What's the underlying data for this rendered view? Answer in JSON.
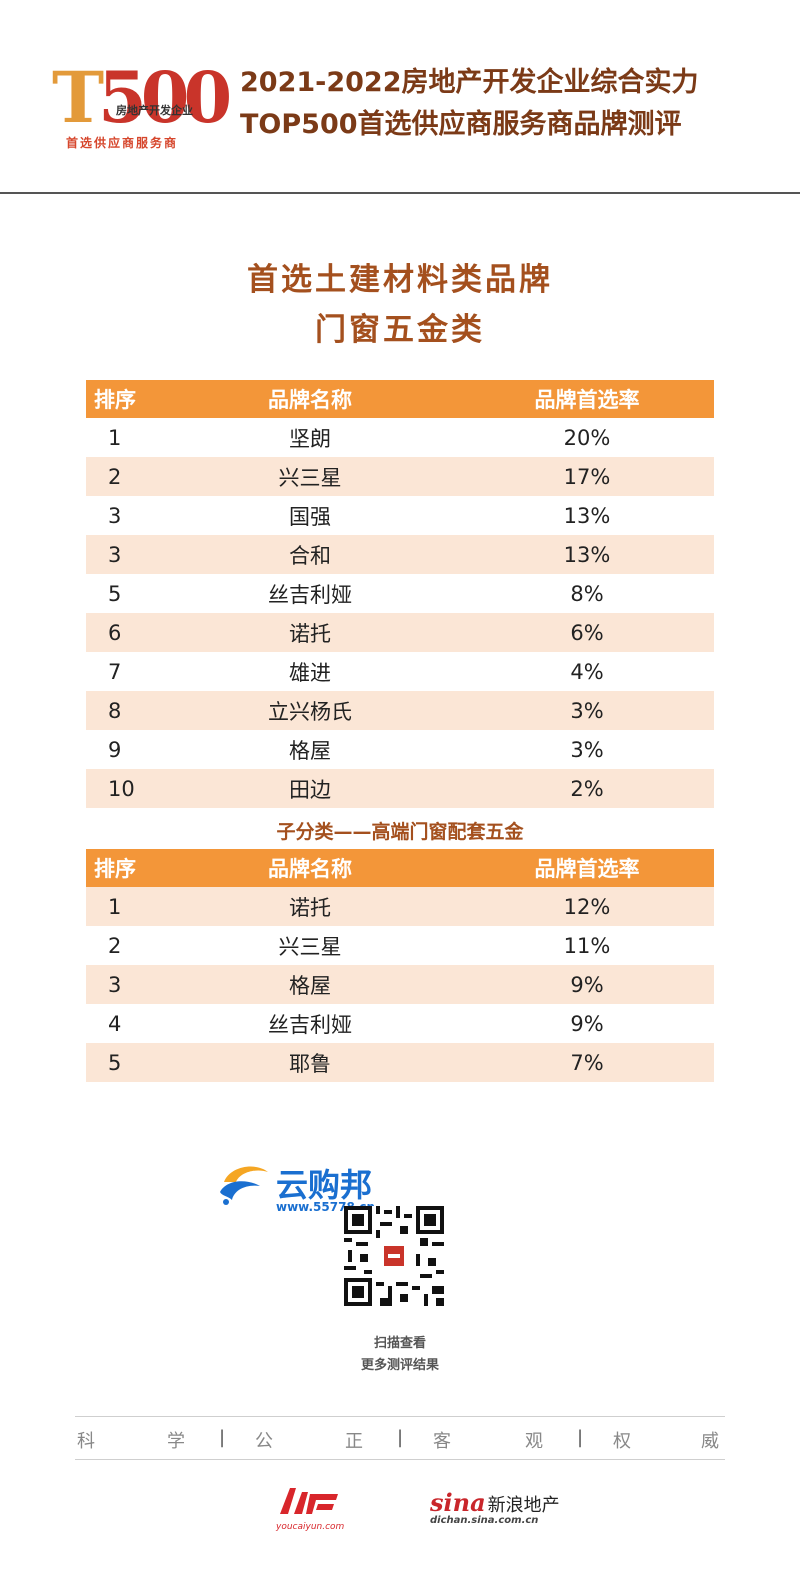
{
  "header": {
    "logo_sub": "首选供应商服务商",
    "logo_tag": "房地产开发企业",
    "title_line1": "2021-2022房地产开发企业综合实力",
    "title_line2": "TOP500首选供应商服务商品牌测评"
  },
  "category": {
    "title_line1": "首选土建材料类品牌",
    "title_line2": "门窗五金类"
  },
  "table_headers": {
    "rank": "排序",
    "brand": "品牌名称",
    "rate": "品牌首选率"
  },
  "main_table": [
    {
      "rank": "1",
      "brand": "坚朗",
      "rate": "20%"
    },
    {
      "rank": "2",
      "brand": "兴三星",
      "rate": "17%"
    },
    {
      "rank": "3",
      "brand": "国强",
      "rate": "13%"
    },
    {
      "rank": "3",
      "brand": "合和",
      "rate": "13%"
    },
    {
      "rank": "5",
      "brand": "丝吉利娅",
      "rate": "8%"
    },
    {
      "rank": "6",
      "brand": "诺托",
      "rate": "6%"
    },
    {
      "rank": "7",
      "brand": "雄进",
      "rate": "4%"
    },
    {
      "rank": "8",
      "brand": "立兴杨氏",
      "rate": "3%"
    },
    {
      "rank": "9",
      "brand": "格屋",
      "rate": "3%"
    },
    {
      "rank": "10",
      "brand": "田边",
      "rate": "2%"
    }
  ],
  "subcategory_title": "子分类——高端门窗配套五金",
  "sub_table": [
    {
      "rank": "1",
      "brand": "诺托",
      "rate": "12%"
    },
    {
      "rank": "2",
      "brand": "兴三星",
      "rate": "11%"
    },
    {
      "rank": "3",
      "brand": "格屋",
      "rate": "9%"
    },
    {
      "rank": "4",
      "brand": "丝吉利娅",
      "rate": "9%"
    },
    {
      "rank": "5",
      "brand": "耶鲁",
      "rate": "7%"
    }
  ],
  "promo": {
    "brand_name": "云购邦",
    "brand_url": "www.55778.cn",
    "scan_line1": "扫描查看",
    "scan_line2": "更多测评结果"
  },
  "motto": [
    "科",
    "学",
    "公",
    "正",
    "客",
    "观",
    "权",
    "威"
  ],
  "footer": {
    "youcai_url": "youcaiyun.com",
    "sina_logo": "sina",
    "sina_name": "新浪地产",
    "sina_url": "dichan.sina.com.cn"
  },
  "colors": {
    "header_orange": "#f39639",
    "row_alt": "#fbe6d6",
    "title_brown": "#a4501e",
    "brand_blue": "#1a6fd0"
  }
}
